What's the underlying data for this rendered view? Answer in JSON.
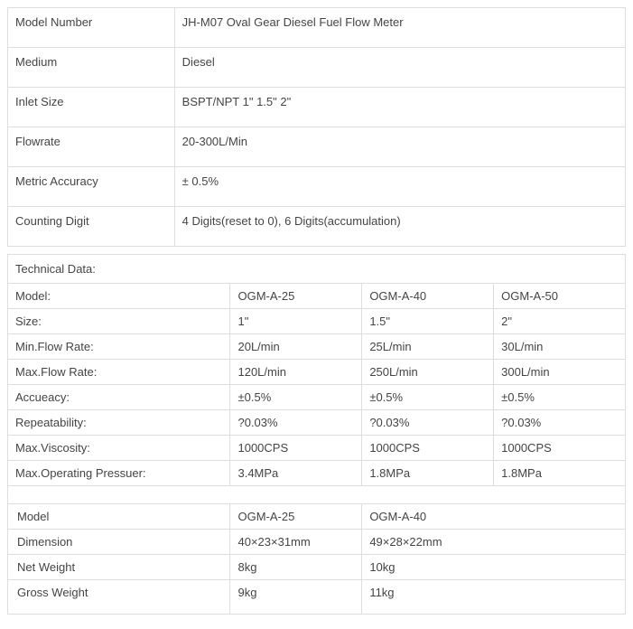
{
  "spec": {
    "rows": [
      {
        "label": "Model Number",
        "value": "JH-M07   Oval Gear  Diesel Fuel Flow Meter"
      },
      {
        "label": "Medium",
        "value": "Diesel"
      },
      {
        "label": "Inlet Size",
        "value": "BSPT/NPT 1\" 1.5\" 2\""
      },
      {
        "label": "Flowrate",
        "value": "20-300L/Min"
      },
      {
        "label": "Metric Accuracy",
        "value": "± 0.5%"
      },
      {
        "label": "Counting Digit",
        "value": "4 Digits(reset to 0), 6 Digits(accumulation)"
      }
    ]
  },
  "tech": {
    "header": "Technical Data:",
    "columns": [
      "Model:",
      "OGM-A-25",
      "OGM-A-40",
      "OGM-A-50"
    ],
    "rows": [
      {
        "label": "Size:",
        "v1": "1\"",
        "v2": "1.5\"",
        "v3": "2\""
      },
      {
        "label": "Min.Flow Rate:",
        "v1": "20L/min",
        "v2": "25L/min",
        "v3": "30L/min"
      },
      {
        "label": "Max.Flow Rate:",
        "v1": "120L/min",
        "v2": "250L/min",
        "v3": "300L/min"
      },
      {
        "label": "Accueacy:",
        "v1": "±0.5%",
        "v2": "±0.5%",
        "v3": "±0.5%"
      },
      {
        "label": "Repeatability:",
        "v1": "?0.03%",
        "v2": "?0.03%",
        "v3": "?0.03%"
      },
      {
        "label": "Max.Viscosity:",
        "v1": "1000CPS",
        "v2": "1000CPS",
        "v3": "1000CPS"
      },
      {
        "label": "Max.Operating Pressuer:",
        "v1": "3.4MPa",
        "v2": "1.8MPa",
        "v3": "1.8MPa"
      }
    ]
  },
  "dim": {
    "columns": [
      "Model",
      "OGM-A-25",
      "OGM-A-40"
    ],
    "rows": [
      {
        "label": "Dimension",
        "v1": "40×23×31mm",
        "v2": "49×28×22mm"
      },
      {
        "label": "Net Weight",
        "v1": "8kg",
        "v2": "10kg"
      },
      {
        "label": "Gross Weight",
        "v1": "9kg",
        "v2": "11kg"
      }
    ]
  },
  "colors": {
    "border": "#dddddd",
    "text": "#444444",
    "background": "#ffffff"
  }
}
